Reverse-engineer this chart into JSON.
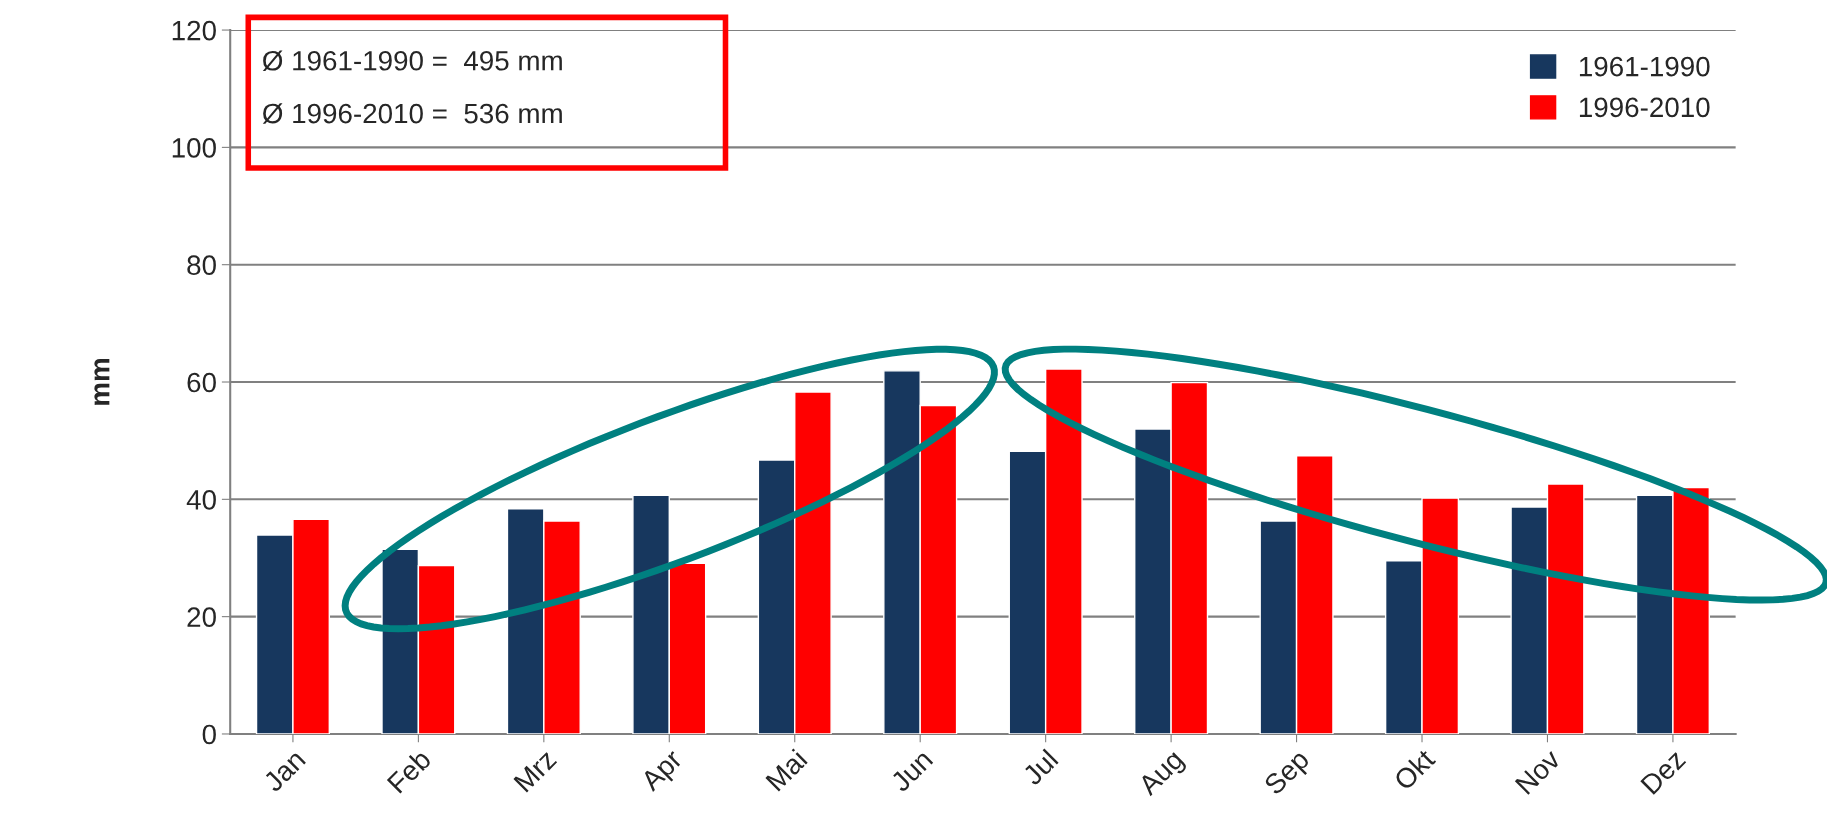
{
  "chart_data": {
    "type": "bar",
    "ylabel": "mm",
    "categories": [
      "Jan",
      "Feb",
      "Mrz",
      "Apr",
      "Mai",
      "Jun",
      "Jul",
      "Aug",
      "Sep",
      "Okt",
      "Nov",
      "Dez"
    ],
    "series": [
      {
        "name": "1961-1990",
        "color": "#17375e",
        "values": [
          33.9,
          31.5,
          38.4,
          40.7,
          46.7,
          61.9,
          48.2,
          52.0,
          36.3,
          29.5,
          38.7,
          40.7
        ]
      },
      {
        "name": "1996-2010",
        "color": "#ff0000",
        "values": [
          36.6,
          28.7,
          36.3,
          29.1,
          58.3,
          56.0,
          62.2,
          59.9,
          47.4,
          40.2,
          42.6,
          42.0
        ]
      }
    ],
    "ylim": [
      0,
      120
    ],
    "yticks": [
      0,
      20,
      40,
      60,
      80,
      100,
      120
    ],
    "grid": "y",
    "legend": "top right",
    "annotations": [
      "Ø 1961-1990 =  495 mm",
      "Ø 1996-2010 =  536 mm"
    ]
  }
}
